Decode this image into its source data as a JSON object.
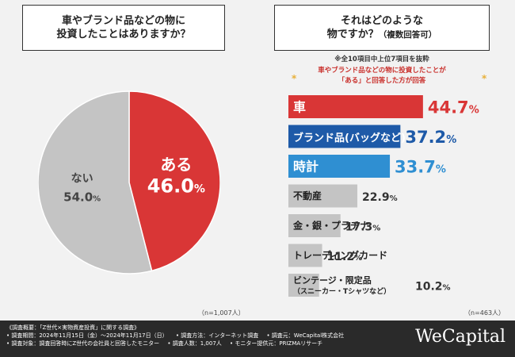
{
  "left_question": {
    "line1": "車やブランド品などの物に",
    "line2": "投資したことはありますか？"
  },
  "right_question": {
    "line1": "それはどのような",
    "line2": "物ですか？",
    "line2_sub": "（複数回答可）"
  },
  "scope_note": "※全10項目中上位7項目を抜粋",
  "target_note": {
    "line1": "車やブランド品などの物に投資したことが",
    "line2": "「ある」と回答した方が回答",
    "star": "*"
  },
  "n_left": "（n=1,007人）",
  "n_right": "（n=463人）",
  "chart_data": [
    {
      "type": "pie",
      "title": "車やブランド品などの物に投資したことはありますか？",
      "slices": [
        {
          "label": "ある",
          "value": 46.0,
          "value_text": "46.0",
          "unit": "%",
          "color": "#d93636"
        },
        {
          "label": "ない",
          "value": 54.0,
          "value_text": "54.0",
          "unit": "%",
          "color": "#c4c4c4"
        }
      ],
      "n": "（n=1,007人）"
    },
    {
      "type": "bar",
      "orientation": "horizontal",
      "title": "それはどのような物ですか？（複数回答可）",
      "xlim": [
        0,
        50
      ],
      "unit": "%",
      "categories": [
        {
          "label": "車",
          "sub": "",
          "value": 44.7,
          "value_text": "44.7",
          "color": "#d93636",
          "text_color": "#ffffff",
          "value_color": "#d93636"
        },
        {
          "label": "ブランド品(バッグなど)",
          "sub": "",
          "value": 37.2,
          "value_text": "37.2",
          "color": "#1e5aa8",
          "text_color": "#ffffff",
          "value_color": "#1e5aa8"
        },
        {
          "label": "時計",
          "sub": "",
          "value": 33.7,
          "value_text": "33.7",
          "color": "#2f8fd2",
          "text_color": "#ffffff",
          "value_color": "#2f8fd2"
        },
        {
          "label": "不動産",
          "sub": "",
          "value": 22.9,
          "value_text": "22.9",
          "color": "#c4c4c4",
          "text_color": "#222222",
          "value_color": "#333333"
        },
        {
          "label": "金・銀・プラチナ",
          "sub": "",
          "value": 17.3,
          "value_text": "17.3",
          "color": "#c4c4c4",
          "text_color": "#222222",
          "value_color": "#333333"
        },
        {
          "label": "トレーディングカード",
          "sub": "",
          "value": 11.2,
          "value_text": "11.2",
          "color": "#c4c4c4",
          "text_color": "#222222",
          "value_color": "#333333"
        },
        {
          "label": "ビンテージ・限定品",
          "sub": "（スニーカー・Tシャツなど）",
          "value": 10.2,
          "value_text": "10.2",
          "color": "#c4c4c4",
          "text_color": "#222222",
          "value_color": "#333333"
        }
      ],
      "n": "（n=463人）"
    }
  ],
  "footer": {
    "line1": "《調査概要：「Z世代×実物資産投資」に関する調査》",
    "line2": [
      "• 調査期間：2024年11月15日（金）〜2024年11月17日（日）",
      "• 調査方法：インターネット調査",
      "• 調査元：WeCapital株式会社"
    ],
    "line3": [
      "• 調査対象：調査回答時にZ世代の会社員と回答したモニター",
      "• 調査人数：1,007人",
      "• モニター提供元：PRIZMAリサーチ"
    ]
  },
  "logo": "WeCapital"
}
